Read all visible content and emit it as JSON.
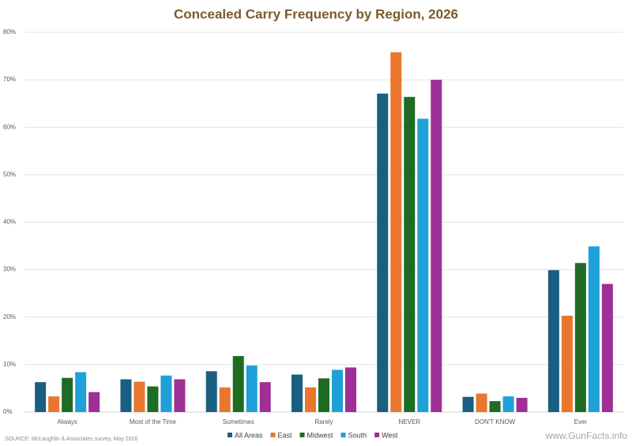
{
  "chart_data": {
    "type": "bar",
    "title": "Concealed Carry Frequency by Region, 2026",
    "categories": [
      "Always",
      "Most of the Time",
      "Sometimes",
      "Rarely",
      "NEVER",
      "DON'T KNOW",
      "Ever"
    ],
    "series": [
      {
        "name": "All Areas",
        "color": "#1a5e82",
        "values": [
          6.3,
          6.9,
          8.6,
          7.9,
          67.1,
          3.2,
          29.9
        ]
      },
      {
        "name": "East",
        "color": "#e8762d",
        "values": [
          3.3,
          6.4,
          5.2,
          5.2,
          75.8,
          3.9,
          20.3
        ]
      },
      {
        "name": "Midwest",
        "color": "#1e6b23",
        "values": [
          7.2,
          5.4,
          11.8,
          7.1,
          66.4,
          2.3,
          31.4
        ]
      },
      {
        "name": "South",
        "color": "#1ea0d8",
        "values": [
          8.4,
          7.7,
          9.8,
          8.9,
          61.8,
          3.3,
          34.9
        ]
      },
      {
        "name": "West",
        "color": "#9e2f96",
        "values": [
          4.2,
          6.9,
          6.3,
          9.4,
          70.0,
          3.0,
          27.0
        ]
      }
    ],
    "ylim": [
      0,
      80
    ],
    "yticks": [
      {
        "value": 0,
        "label": "0%"
      },
      {
        "value": 10,
        "label": "10%"
      },
      {
        "value": 20,
        "label": "20%"
      },
      {
        "value": 30,
        "label": "30%"
      },
      {
        "value": 40,
        "label": "40%"
      },
      {
        "value": 50,
        "label": "50%"
      },
      {
        "value": 60,
        "label": "60%"
      },
      {
        "value": 70,
        "label": "70%"
      },
      {
        "value": 80,
        "label": "80%"
      }
    ],
    "grid": true,
    "legend": "bottom",
    "source": "SOURCE: McLaughlin & Associates survey, May 2026",
    "watermark": "www.GunFacts.info"
  }
}
